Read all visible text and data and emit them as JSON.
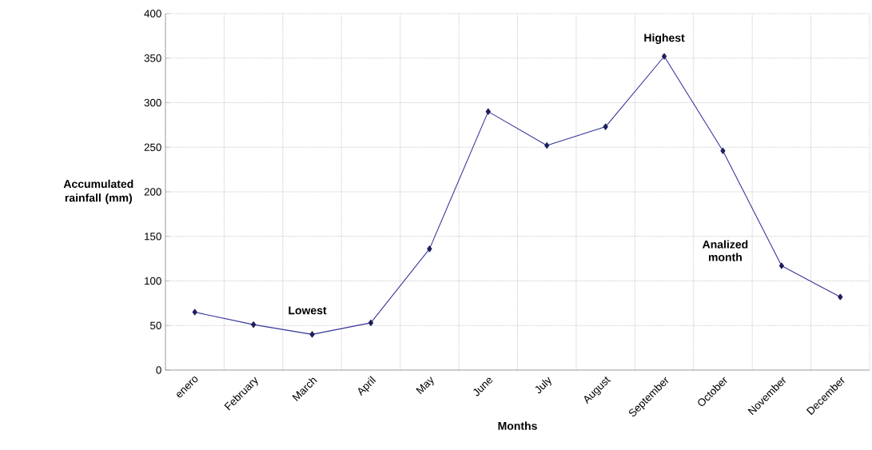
{
  "chart_data": {
    "type": "line",
    "xlabel": "Months",
    "ylabel": "Accumulated rainfall (mm)",
    "categories": [
      "enero",
      "February",
      "March",
      "April",
      "May",
      "June",
      "July",
      "August",
      "September",
      "October",
      "November",
      "December"
    ],
    "series": [
      {
        "color": "#333399",
        "values": [
          65,
          51,
          40,
          53,
          136,
          290,
          252,
          273,
          352,
          246,
          117,
          82
        ]
      }
    ],
    "ylim": [
      0,
      400
    ],
    "yticks": [
      0,
      50,
      100,
      150,
      200,
      250,
      300,
      350,
      400
    ],
    "grid": true,
    "marker": "diamond",
    "line_style": "solid",
    "annotations": [
      {
        "text": "Highest",
        "x": "September",
        "y": 352
      },
      {
        "text": "Lowest",
        "x": "March",
        "y": 40
      },
      "Analized month"
    ]
  }
}
